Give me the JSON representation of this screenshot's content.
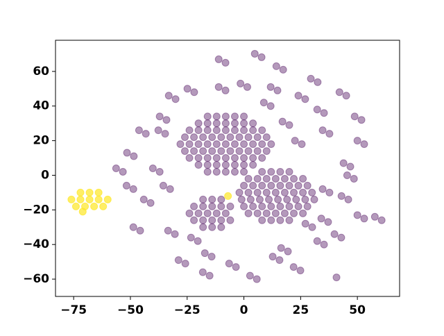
{
  "chart_data": {
    "type": "scatter",
    "xlim": [
      -83,
      68.6
    ],
    "ylim": [
      -70,
      78
    ],
    "xticks": [
      {
        "value": -75,
        "label": "−75"
      },
      {
        "value": -50,
        "label": "−50"
      },
      {
        "value": -25,
        "label": "−25"
      },
      0,
      25,
      50
    ],
    "yticks": [
      {
        "value": -60,
        "label": "−60"
      },
      {
        "value": -40,
        "label": "−40"
      },
      {
        "value": -20,
        "label": "−20"
      },
      0,
      20,
      40,
      60
    ],
    "grid": false,
    "series": [
      {
        "color": "#440154",
        "alpha": 0.4,
        "x": [
          -16,
          -12,
          -8,
          -4,
          0,
          -20,
          -16,
          -12,
          -8,
          -4,
          0,
          4,
          -24,
          -20,
          -16,
          -12,
          -8,
          -4,
          0,
          4,
          8,
          -26,
          -22,
          -18,
          -14,
          -10,
          -6,
          -2,
          2,
          6,
          10,
          -28,
          -24,
          -20,
          -16,
          -12,
          -8,
          -4,
          0,
          4,
          8,
          12,
          -26,
          -22,
          -18,
          -14,
          -10,
          -6,
          -2,
          2,
          6,
          10,
          -24,
          -20,
          -16,
          -12,
          -8,
          -4,
          0,
          4,
          8,
          -20,
          -16,
          -12,
          -8,
          -4,
          0,
          4,
          -16,
          -12,
          -8,
          -4,
          0,
          8,
          12,
          16,
          20,
          2,
          6,
          10,
          14,
          18,
          22,
          26,
          0,
          4,
          8,
          12,
          16,
          20,
          24,
          28,
          -2,
          2,
          6,
          10,
          14,
          18,
          22,
          26,
          30,
          -1,
          3,
          7,
          11,
          15,
          19,
          23,
          27,
          31,
          0,
          4,
          8,
          12,
          16,
          20,
          24,
          28,
          2,
          6,
          10,
          14,
          18,
          22,
          26,
          8,
          12,
          16,
          20,
          -18,
          -14,
          -10,
          -22,
          -18,
          -14,
          -10,
          -6,
          -24,
          -20,
          -16,
          -12,
          -8,
          -22,
          -18,
          -14,
          -10,
          -6,
          -18,
          -14,
          -10,
          -11.1,
          -8.1,
          4.8,
          7.8,
          14.3,
          17.3,
          29.5,
          32.5,
          42.1,
          45.1,
          48.8,
          51.8,
          50,
          53,
          43.9,
          46.9,
          34.7,
          37.7,
          43,
          46,
          50,
          53,
          57.7,
          60.7,
          39.9,
          42.9,
          32.3,
          35.3,
          21.9,
          24.9,
          12.7,
          15.7,
          2.7,
          5.7,
          -6.5,
          -3.5,
          -17.2,
          -14.2,
          -18.1,
          -15.1,
          -28.8,
          -25.8,
          -33.4,
          -30.4,
          -48.7,
          -45.7,
          -44.1,
          -41.1,
          -51.7,
          -48.7,
          -35.5,
          -32.5,
          -40.1,
          -37.1,
          -56.3,
          -53.3,
          -51.5,
          -48.5,
          -46.2,
          -43.2,
          -37.1,
          -34.1,
          -33.1,
          -30.1,
          -24.9,
          -21.9,
          -11.1,
          -8.1,
          -1.5,
          1.5,
          11.8,
          14.8,
          24,
          27,
          32.3,
          35.3,
          34.7,
          37.7,
          22.5,
          25.5,
          17,
          20,
          8.8,
          11.8,
          45.5,
          48.5,
          -23.3,
          -20.3,
          34.1,
          37.1,
          27.1,
          30.1,
          16.4,
          19.4,
          -37.7,
          -34.7,
          40.8
        ],
        "values": [
          34,
          34,
          34,
          34,
          34,
          30,
          30,
          30,
          30,
          30,
          30,
          30,
          26,
          26,
          26,
          26,
          26,
          26,
          26,
          26,
          26,
          22,
          22,
          22,
          22,
          22,
          22,
          22,
          22,
          22,
          22,
          18,
          18,
          18,
          18,
          18,
          18,
          18,
          18,
          18,
          18,
          18,
          14,
          14,
          14,
          14,
          14,
          14,
          14,
          14,
          14,
          14,
          10,
          10,
          10,
          10,
          10,
          10,
          10,
          10,
          10,
          6,
          6,
          6,
          6,
          6,
          6,
          6,
          2,
          2,
          2,
          2,
          2,
          2,
          2,
          2,
          2,
          -2,
          -2,
          -2,
          -2,
          -2,
          -2,
          -2,
          -6,
          -6,
          -6,
          -6,
          -6,
          -6,
          -6,
          -6,
          -10,
          -10,
          -10,
          -10,
          -10,
          -10,
          -10,
          -10,
          -10,
          -14,
          -14,
          -14,
          -14,
          -14,
          -14,
          -14,
          -14,
          -14,
          -18,
          -18,
          -18,
          -18,
          -18,
          -18,
          -18,
          -18,
          -22,
          -22,
          -22,
          -22,
          -22,
          -22,
          -22,
          -26,
          -26,
          -26,
          -26,
          -14,
          -14,
          -14,
          -18,
          -18,
          -18,
          -18,
          -18,
          -22,
          -22,
          -22,
          -22,
          -22,
          -26,
          -26,
          -26,
          -26,
          -26,
          -30,
          -30,
          -30,
          67,
          65,
          70.2,
          68.2,
          63,
          61,
          55.8,
          53.8,
          48,
          46,
          34,
          32,
          20,
          18,
          7,
          5,
          -8,
          -10,
          -12,
          -14,
          -23,
          -25,
          -24,
          -26,
          -34,
          -36,
          -38,
          -40,
          -53,
          -55,
          -47,
          -49,
          -58,
          -60,
          -51,
          -53,
          -45,
          -47,
          -56,
          -58,
          -49,
          -51,
          -32,
          -34,
          -30,
          -32,
          -14,
          -16,
          -6,
          -8,
          -6,
          -8,
          4,
          2,
          4,
          2,
          13,
          11,
          26,
          24,
          34,
          32,
          46,
          44,
          50,
          48,
          51,
          49,
          53,
          51,
          51,
          49,
          46,
          44,
          38,
          36,
          26,
          24,
          20,
          18,
          31,
          29,
          42,
          40,
          0,
          -2,
          -36,
          -38,
          -25,
          -27,
          -28,
          -30,
          -42,
          -44,
          26,
          24,
          -59
        ]
      },
      {
        "color": "#fde725",
        "alpha": 0.7,
        "x": [
          -72,
          -68,
          -64,
          -76,
          -72,
          -68,
          -64,
          -60,
          -74,
          -70,
          -66,
          -62,
          -71,
          -7
        ],
        "values": [
          -10,
          -10,
          -10,
          -14,
          -14,
          -14,
          -14,
          -14,
          -18,
          -18,
          -18,
          -18,
          -21,
          -12
        ]
      }
    ]
  }
}
